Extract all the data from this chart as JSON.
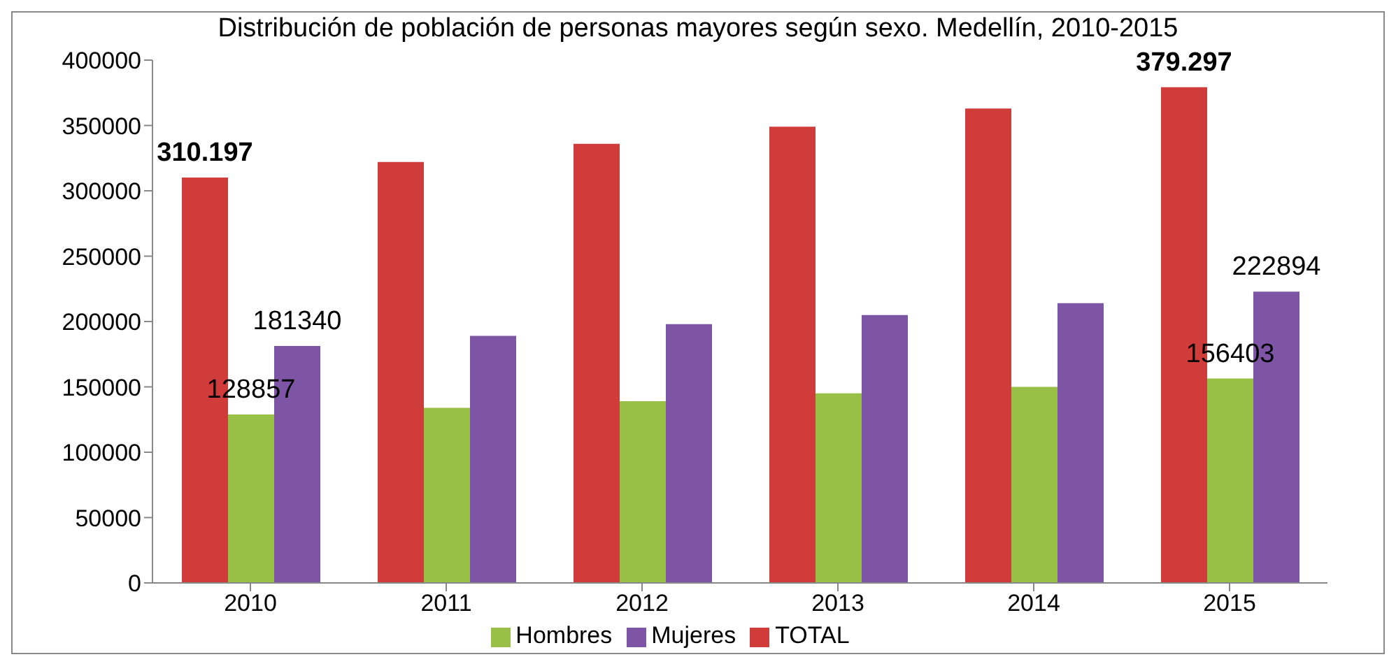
{
  "chart_data": {
    "type": "bar",
    "title": "Distribución de población de personas mayores según sexo. Medellín, 2010-2015",
    "categories": [
      "2010",
      "2011",
      "2012",
      "2013",
      "2014",
      "2015"
    ],
    "series": [
      {
        "name": "TOTAL",
        "color": "#d03c3a",
        "values": [
          310197,
          322000,
          336000,
          349000,
          363000,
          379297
        ],
        "value_labels": [
          "310.197",
          null,
          null,
          null,
          null,
          "379.297"
        ]
      },
      {
        "name": "Hombres",
        "color": "#98c046",
        "values": [
          128857,
          134000,
          139000,
          145000,
          150000,
          156403
        ],
        "value_labels": [
          "128857",
          null,
          null,
          null,
          null,
          "156403"
        ]
      },
      {
        "name": "Mujeres",
        "color": "#7d55a4",
        "values": [
          181340,
          189000,
          198000,
          205000,
          214000,
          222894
        ],
        "value_labels": [
          "181340",
          null,
          null,
          null,
          null,
          "222894"
        ]
      }
    ],
    "ylim": [
      0,
      400000
    ],
    "yticks": [
      0,
      50000,
      100000,
      150000,
      200000,
      250000,
      300000,
      350000,
      400000
    ],
    "grid": false,
    "legend": "bottom"
  }
}
